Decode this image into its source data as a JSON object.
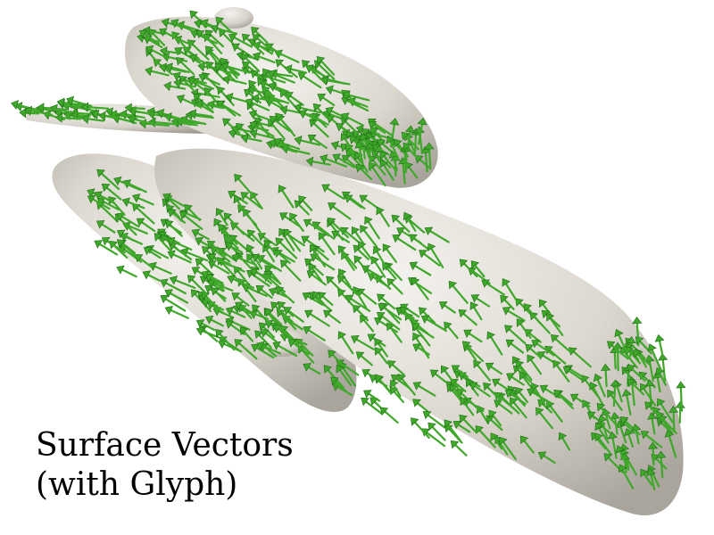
{
  "caption": {
    "line1": "Surface Vectors",
    "line2": "(with Glyph)"
  },
  "colors": {
    "background": "#ffffff",
    "surface": "#dcd8d0",
    "surface_shadow": "#a9a59d",
    "surface_highlight": "#f4f2ee",
    "glyph": "#3fa82a",
    "glyph_dark": "#1f6e14",
    "caption_text": "#000000"
  },
  "glyph_shape": "arrow-glyph"
}
